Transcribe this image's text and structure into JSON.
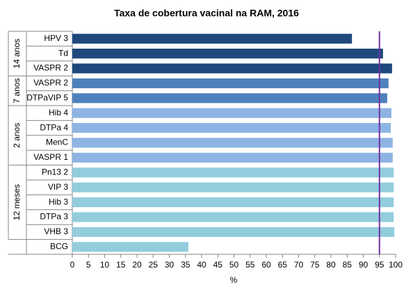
{
  "chart_data": {
    "type": "bar",
    "orientation": "horizontal",
    "title": "Taxa de cobertura vacinal na RAM, 2016",
    "x_label": "%",
    "groups": [
      {
        "name": "14 anos",
        "color": "#1f497d",
        "categories": [
          "HPV 3",
          "Td",
          "VASPR 2"
        ],
        "values": [
          86.5,
          96.1,
          98.9
        ]
      },
      {
        "name": "7 anos",
        "color": "#4f81bd",
        "categories": [
          "VASPR 2",
          "DTPaVIP 5"
        ],
        "values": [
          97.8,
          97.4
        ]
      },
      {
        "name": "2 anos",
        "color": "#8eb4e3",
        "categories": [
          "Hib 4",
          "DTPa 4",
          "MenC",
          "VASPR 1"
        ],
        "values": [
          98.7,
          98.5,
          99.1,
          99.1
        ]
      },
      {
        "name": "12 meses",
        "color": "#93cddd",
        "categories": [
          "Pn13 2",
          "VIP 3",
          "Hib 3",
          "DTPa 3",
          "VHB 3"
        ],
        "values": [
          99.4,
          99.4,
          99.4,
          99.4,
          99.6
        ]
      },
      {
        "color": "#93cddd",
        "categories": [
          "BCG"
        ],
        "values": [
          35.9
        ]
      }
    ],
    "reference_line": {
      "value": 95,
      "color": "#7030a0"
    },
    "xlim": [
      0,
      100
    ],
    "xticks": [
      0,
      5,
      10,
      15,
      20,
      25,
      30,
      35,
      40,
      45,
      50,
      55,
      60,
      65,
      70,
      75,
      80,
      85,
      90,
      95,
      100
    ],
    "grid": false
  }
}
